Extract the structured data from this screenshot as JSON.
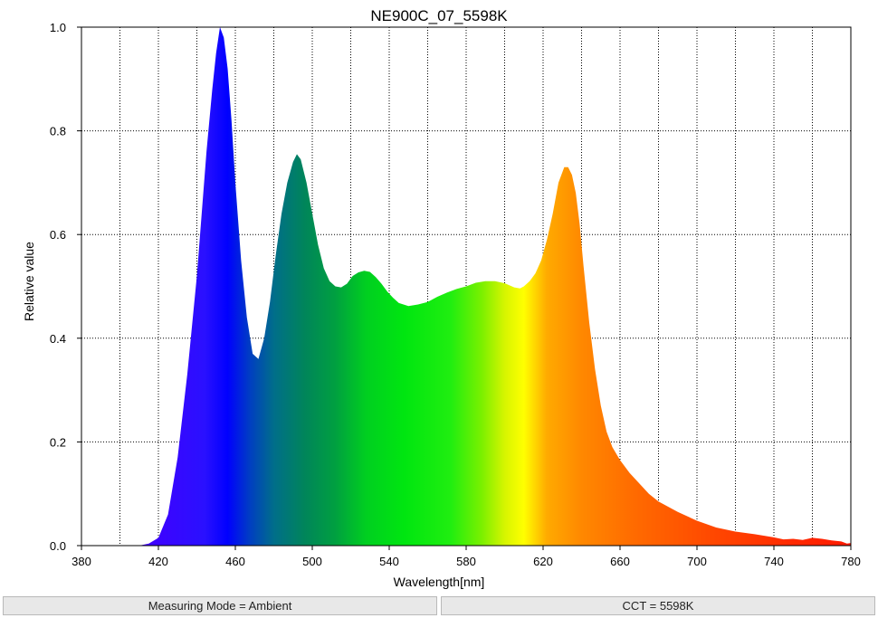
{
  "chart_data": {
    "type": "area",
    "title": "NE900C_07_5598K",
    "xlabel": "Wavelength[nm]",
    "ylabel": "Relative value",
    "xlim": [
      380,
      780
    ],
    "ylim": [
      0,
      1.0
    ],
    "x_ticks": [
      "380",
      "420",
      "460",
      "500",
      "540",
      "580",
      "620",
      "660",
      "700",
      "740",
      "780"
    ],
    "y_ticks": [
      "0.0",
      "0.2",
      "0.4",
      "0.6",
      "0.8",
      "1.0"
    ],
    "grid": true,
    "fill": "visible-spectrum gradient",
    "x": [
      380,
      410,
      415,
      420,
      425,
      430,
      435,
      440,
      445,
      448,
      450,
      452,
      454,
      456,
      458,
      460,
      463,
      466,
      469,
      472,
      475,
      478,
      481,
      484,
      487,
      490,
      492,
      494,
      497,
      500,
      503,
      506,
      509,
      512,
      515,
      518,
      521,
      524,
      527,
      530,
      533,
      536,
      539,
      542,
      545,
      550,
      555,
      560,
      565,
      570,
      575,
      580,
      585,
      590,
      595,
      600,
      605,
      608,
      610,
      613,
      616,
      619,
      622,
      625,
      628,
      631,
      633,
      635,
      637,
      639,
      641,
      644,
      647,
      650,
      653,
      656,
      660,
      665,
      670,
      675,
      680,
      690,
      700,
      710,
      720,
      730,
      740,
      745,
      750,
      755,
      760,
      765,
      770,
      775,
      778,
      780
    ],
    "y": [
      0.0,
      0.0,
      0.004,
      0.015,
      0.06,
      0.17,
      0.33,
      0.52,
      0.76,
      0.88,
      0.95,
      1.0,
      0.98,
      0.92,
      0.82,
      0.7,
      0.55,
      0.44,
      0.37,
      0.36,
      0.4,
      0.47,
      0.56,
      0.64,
      0.7,
      0.74,
      0.755,
      0.745,
      0.7,
      0.64,
      0.58,
      0.535,
      0.51,
      0.5,
      0.498,
      0.505,
      0.52,
      0.527,
      0.53,
      0.528,
      0.518,
      0.505,
      0.49,
      0.478,
      0.468,
      0.462,
      0.465,
      0.47,
      0.48,
      0.488,
      0.495,
      0.5,
      0.507,
      0.51,
      0.51,
      0.506,
      0.498,
      0.496,
      0.5,
      0.51,
      0.525,
      0.55,
      0.59,
      0.64,
      0.7,
      0.73,
      0.73,
      0.715,
      0.68,
      0.62,
      0.54,
      0.43,
      0.34,
      0.27,
      0.22,
      0.19,
      0.165,
      0.14,
      0.12,
      0.1,
      0.085,
      0.065,
      0.048,
      0.035,
      0.027,
      0.022,
      0.016,
      0.012,
      0.013,
      0.011,
      0.015,
      0.013,
      0.01,
      0.008,
      0.004,
      0.005
    ]
  },
  "status": {
    "left": "Measuring Mode = Ambient",
    "right": "CCT = 5598K"
  }
}
